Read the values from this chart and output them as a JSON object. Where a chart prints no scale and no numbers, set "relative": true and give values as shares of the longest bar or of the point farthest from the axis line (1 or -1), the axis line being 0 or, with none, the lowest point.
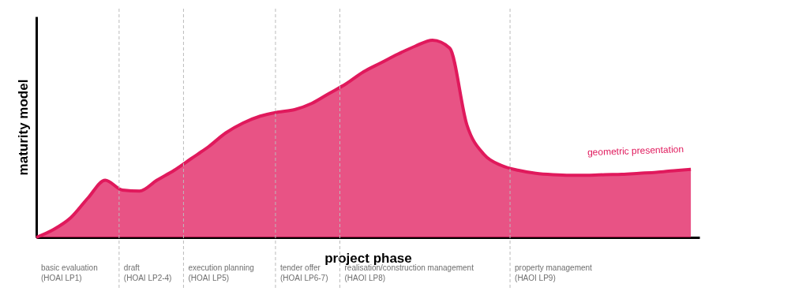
{
  "chart_data": {
    "type": "area",
    "relative": true,
    "xlabel": "project phase",
    "ylabel": "maturity model",
    "categories": [
      null,
      null,
      null,
      null,
      null,
      null,
      null,
      null,
      null,
      null,
      null,
      null,
      null,
      null,
      null,
      null,
      null,
      null,
      null,
      null,
      null,
      null,
      null,
      null,
      null,
      null,
      null,
      null,
      null,
      null,
      null,
      null,
      null,
      null,
      null,
      null,
      null,
      null,
      null
    ],
    "series": [
      {
        "color": "#e0195c",
        "values": [
          0,
          0.04,
          0.1,
          0.2,
          0.29,
          0.24,
          0.235,
          0.29,
          0.34,
          0.4,
          0.46,
          0.53,
          0.58,
          0.615,
          0.635,
          0.648,
          0.68,
          0.73,
          0.78,
          0.84,
          0.885,
          0.93,
          0.97,
          1.0,
          0.96,
          0.57,
          0.42,
          0.365,
          0.34,
          0.325,
          0.318,
          0.315,
          0.315,
          0.318,
          0.32,
          0.325,
          0.33,
          0.338,
          0.345
        ]
      }
    ],
    "annotations": [
      "geometric presentation",
      "basic evaluation\n(HOAI LP1)",
      "draft\n(HOAI LP2-4)",
      "execution planning\n(HOAI  LP5)",
      "tender offer\n(HOAI LP6-7)",
      "realisation/construction management\n(HAOI  LP8)",
      "property management\n(HAOI  LP9)"
    ],
    "grid": false
  }
}
